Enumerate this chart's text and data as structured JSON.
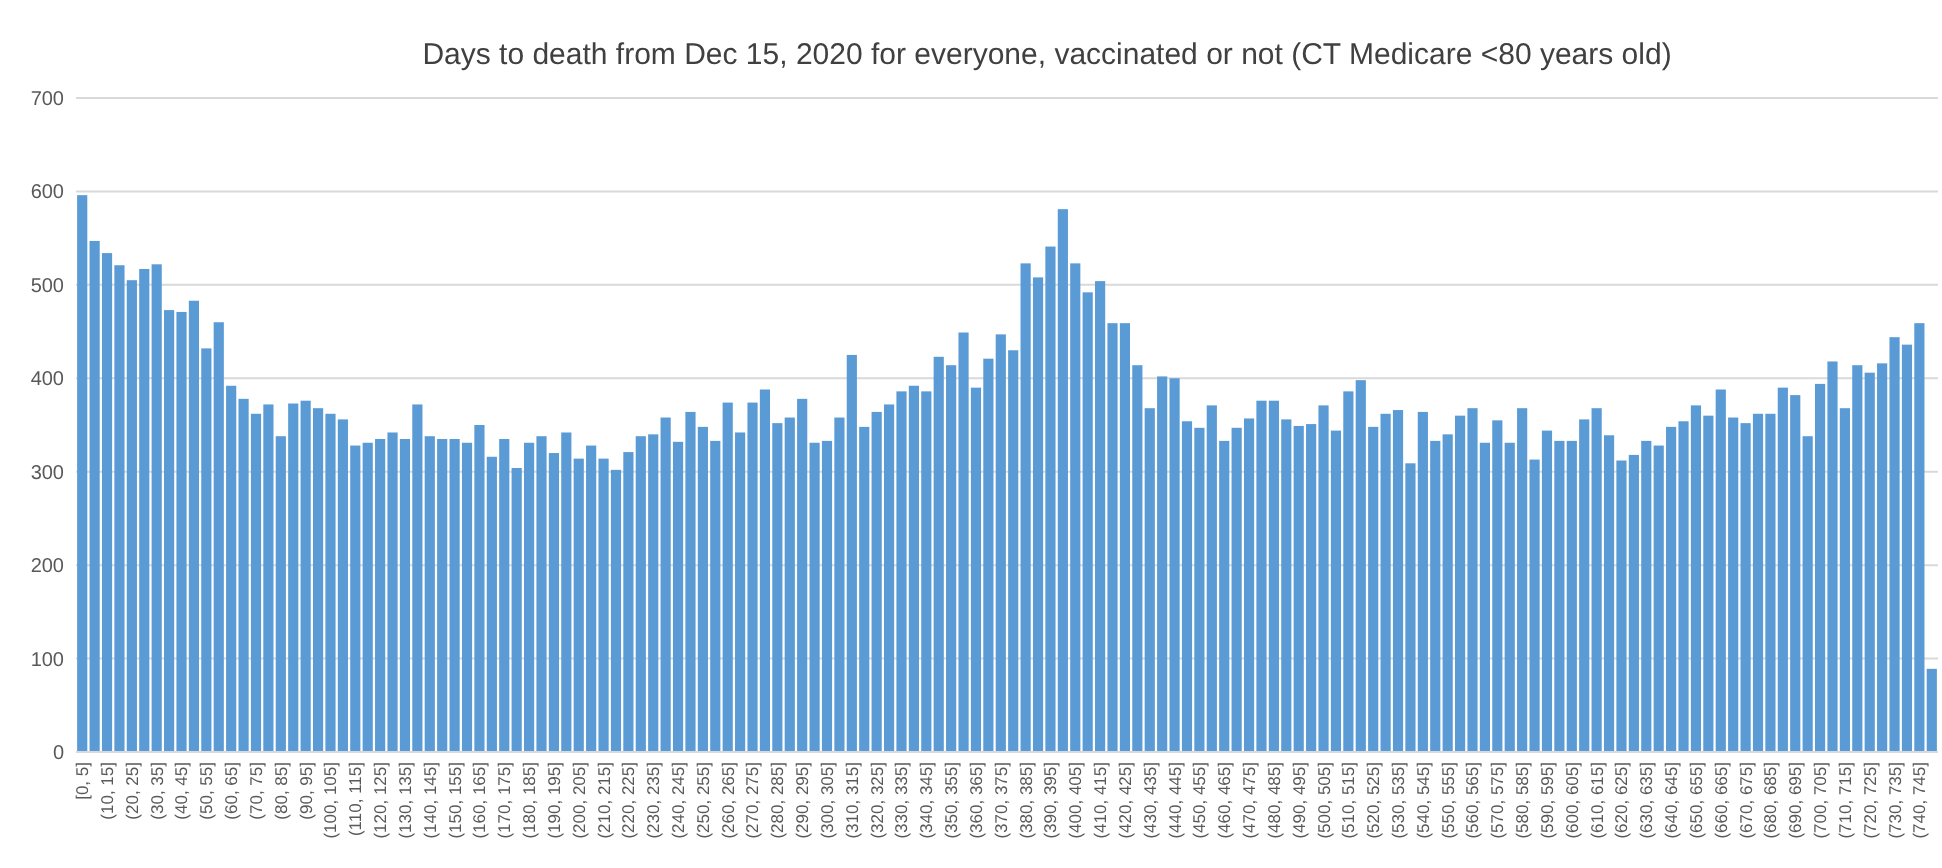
{
  "chart_data": {
    "type": "bar",
    "title": "Days to death from Dec 15, 2020 for everyone, vaccinated or not (CT Medicare <80 years old)",
    "categories": [
      "[0, 5]",
      null,
      "(10, 15]",
      null,
      "(20, 25]",
      null,
      "(30, 35]",
      null,
      "(40, 45]",
      null,
      "(50, 55]",
      null,
      "(60, 65]",
      null,
      "(70, 75]",
      null,
      "(80, 85]",
      null,
      "(90, 95]",
      null,
      "(100, 105]",
      null,
      "(110, 115]",
      null,
      "(120, 125]",
      null,
      "(130, 135]",
      null,
      "(140, 145]",
      null,
      "(150, 155]",
      null,
      "(160, 165]",
      null,
      "(170, 175]",
      null,
      "(180, 185]",
      null,
      "(190, 195]",
      null,
      "(200, 205]",
      null,
      "(210, 215]",
      null,
      "(220, 225]",
      null,
      "(230, 235]",
      null,
      "(240, 245]",
      null,
      "(250, 255]",
      null,
      "(260, 265]",
      null,
      "(270, 275]",
      null,
      "(280, 285]",
      null,
      "(290, 295]",
      null,
      "(300, 305]",
      null,
      "(310, 315]",
      null,
      "(320, 325]",
      null,
      "(330, 335]",
      null,
      "(340, 345]",
      null,
      "(350, 355]",
      null,
      "(360, 365]",
      null,
      "(370, 375]",
      null,
      "(380, 385]",
      null,
      "(390, 395]",
      null,
      "(400, 405]",
      null,
      "(410, 415]",
      null,
      "(420, 425]",
      null,
      "(430, 435]",
      null,
      "(440, 445]",
      null,
      "(450, 455]",
      null,
      "(460, 465]",
      null,
      "(470, 475]",
      null,
      "(480, 485]",
      null,
      "(490, 495]",
      null,
      "(500, 505]",
      null,
      "(510, 515]",
      null,
      "(520, 525]",
      null,
      "(530, 535]",
      null,
      "(540, 545]",
      null,
      "(550, 555]",
      null,
      "(560, 565]",
      null,
      "(570, 575]",
      null,
      "(580, 585]",
      null,
      "(590, 595]",
      null,
      "(600, 605]",
      null,
      "(610, 615]",
      null,
      "(620, 625]",
      null,
      "(630, 635]",
      null,
      "(640, 645]",
      null,
      "(650, 655]",
      null,
      "(660, 665]",
      null,
      "(670, 675]",
      null,
      "(680, 685]",
      null,
      "(690, 695]",
      null,
      "(700, 705]",
      null,
      "(710, 715]",
      null,
      "(720, 725]",
      null,
      "(730, 735]",
      null,
      "(740, 745]",
      null
    ],
    "values": [
      596,
      547,
      534,
      521,
      505,
      517,
      522,
      473,
      471,
      483,
      432,
      460,
      392,
      378,
      362,
      372,
      338,
      373,
      376,
      368,
      362,
      356,
      328,
      331,
      335,
      342,
      335,
      372,
      338,
      335,
      335,
      331,
      350,
      316,
      335,
      304,
      331,
      338,
      320,
      342,
      314,
      328,
      314,
      302,
      321,
      338,
      340,
      358,
      332,
      364,
      348,
      333,
      374,
      342,
      374,
      388,
      352,
      358,
      378,
      331,
      333,
      358,
      425,
      348,
      364,
      372,
      386,
      392,
      386,
      423,
      414,
      449,
      390,
      421,
      447,
      430,
      523,
      508,
      541,
      581,
      523,
      492,
      504,
      459,
      459,
      414,
      368,
      402,
      400,
      354,
      347,
      371,
      333,
      347,
      357,
      376,
      376,
      356,
      349,
      351,
      371,
      344,
      386,
      398,
      348,
      362,
      366,
      309,
      364,
      333,
      340,
      360,
      368,
      331,
      355,
      331,
      368,
      313,
      344,
      333,
      333,
      356,
      368,
      339,
      312,
      318,
      333,
      328,
      348,
      354,
      371,
      360,
      388,
      358,
      352,
      362,
      362,
      390,
      382,
      338,
      394,
      418,
      368,
      414,
      406,
      416,
      444,
      436,
      459,
      89
    ],
    "color": "#5b9bd5",
    "ylim": [
      0,
      700
    ],
    "yticks": [
      0,
      100,
      200,
      300,
      400,
      500,
      600,
      700
    ],
    "grid": "y"
  }
}
